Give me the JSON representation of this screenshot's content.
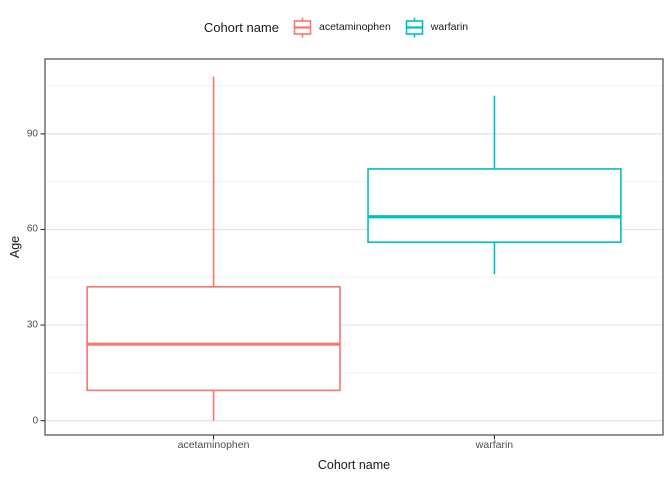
{
  "figure": {
    "legend": {
      "title": "Cohort name",
      "entries": [
        {
          "label": "acetaminophen",
          "color": "#F8766D"
        },
        {
          "label": "warfarin",
          "color": "#00BFC4"
        }
      ]
    },
    "x_axis": {
      "title": "Cohort name",
      "tick_labels": [
        "acetaminophen",
        "warfarin"
      ]
    },
    "y_axis": {
      "title": "Age",
      "tick_labels": [
        "0",
        "30",
        "60",
        "90"
      ]
    }
  },
  "chart_data": {
    "type": "boxplot",
    "title": "",
    "legend_title": "Cohort name",
    "legend_position": "top",
    "xlabel": "Cohort name",
    "ylabel": "Age",
    "categories": [
      "acetaminophen",
      "warfarin"
    ],
    "series": [
      {
        "name": "acetaminophen",
        "color": "#F8766D",
        "min": 0,
        "q1": 9.5,
        "median": 24,
        "q3": 42,
        "max": 108
      },
      {
        "name": "warfarin",
        "color": "#00BFC4",
        "min": 46,
        "q1": 56,
        "median": 64,
        "q3": 79,
        "max": 102
      }
    ],
    "ylim": [
      -4.5,
      113.5
    ],
    "y_major_ticks": [
      0,
      30,
      60,
      90
    ],
    "y_minor_ticks": [
      15,
      45,
      75,
      105
    ],
    "grid": true,
    "colors": {
      "grid_major": "#E3E3E3",
      "grid_minor": "#F1F1F1",
      "panel_border": "#4D4D4D",
      "tick_mark": "#333333",
      "tick_label": "#4D4D4D",
      "panel_bg": "#FFFFFF",
      "box_fill": "#FFFFFF"
    }
  }
}
